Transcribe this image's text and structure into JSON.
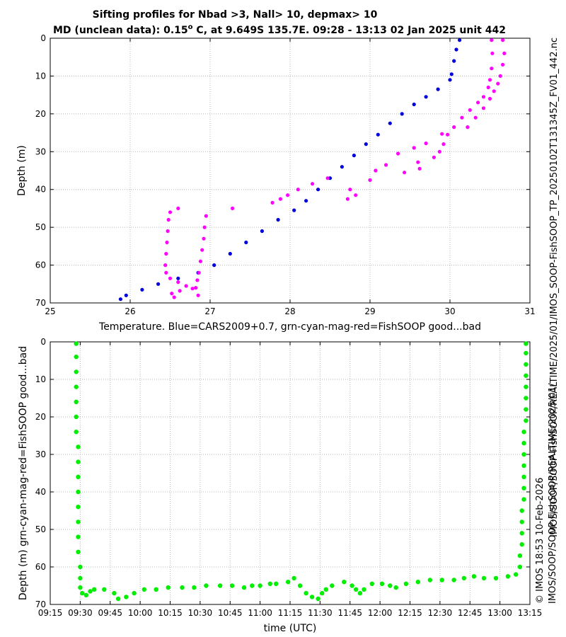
{
  "figure": {
    "title_line1": "Sifting profiles for Nbad >3, Nall> 10, depmax> 10",
    "title_line2": "MD (unclean data): 0.15",
    "title_degree": "o",
    "title_line2_rest": " C, at 9.649S 135.7E. 09:28 - 13:13 02 Jan 2025 unit 442",
    "side_file": "IMOS_SOOP-FishSOOP_TP_20250102T131345Z_FV01_442.nc",
    "side_path": "IMOS/SOOP/SOOP-FishSOOP/REALTIME/2025/01/",
    "side_stamp": "© IMOS 18:53 10-Feb-2026",
    "side_stamp_path": "IMOS/SOOP/SOOP-FishSOOP/REALTIME/2025/01/"
  },
  "colors": {
    "cars": "#0000dd",
    "magenta": "#ff00ff",
    "green": "#00ee00",
    "grid": "#b8b8b8"
  },
  "chart_data": [
    {
      "type": "scatter",
      "xlabel": "Temperature. Blue=CARS2009+0.7, grn-cyan-mag-red=FishSOOP good...bad",
      "ylabel": "Depth (m)",
      "xlim": [
        25,
        31
      ],
      "ylim": [
        0,
        70
      ],
      "y_reversed": true,
      "xticks": [
        25,
        26,
        27,
        28,
        29,
        30,
        31
      ],
      "yticks": [
        0,
        10,
        20,
        30,
        40,
        50,
        60,
        70
      ],
      "grid": true,
      "series": [
        {
          "color_key": "cars",
          "points": [
            [
              30.12,
              0.5
            ],
            [
              30.08,
              3
            ],
            [
              30.05,
              6
            ],
            [
              30.02,
              9.5
            ],
            [
              30.0,
              11
            ],
            [
              29.85,
              13.5
            ],
            [
              29.7,
              15.5
            ],
            [
              29.55,
              17.5
            ],
            [
              29.4,
              20
            ],
            [
              29.25,
              22.5
            ],
            [
              29.1,
              25.5
            ],
            [
              28.95,
              28
            ],
            [
              28.8,
              31
            ],
            [
              28.65,
              34
            ],
            [
              28.5,
              37
            ],
            [
              28.35,
              40
            ],
            [
              28.2,
              43
            ],
            [
              28.05,
              45.5
            ],
            [
              27.85,
              48
            ],
            [
              27.65,
              51
            ],
            [
              27.45,
              54
            ],
            [
              27.25,
              57
            ],
            [
              27.05,
              60
            ],
            [
              26.85,
              62
            ],
            [
              26.6,
              63.5
            ],
            [
              26.35,
              65
            ],
            [
              26.15,
              66.5
            ],
            [
              25.95,
              68
            ],
            [
              25.88,
              69
            ]
          ]
        },
        {
          "color_key": "magenta",
          "points": [
            [
              30.52,
              0.5
            ],
            [
              30.53,
              4
            ],
            [
              30.52,
              8
            ],
            [
              30.5,
              11
            ],
            [
              30.48,
              13
            ],
            [
              30.42,
              15.5
            ],
            [
              30.35,
              17
            ],
            [
              30.25,
              19
            ],
            [
              30.15,
              21
            ],
            [
              30.05,
              23.5
            ],
            [
              29.97,
              25.5
            ],
            [
              29.92,
              28
            ],
            [
              29.87,
              30
            ],
            [
              30.66,
              0.5
            ],
            [
              30.68,
              4
            ],
            [
              30.66,
              7
            ],
            [
              30.63,
              10
            ],
            [
              30.6,
              12
            ],
            [
              30.55,
              14
            ],
            [
              30.5,
              16
            ],
            [
              30.42,
              18.5
            ],
            [
              30.32,
              21
            ],
            [
              30.22,
              23.5
            ],
            [
              29.9,
              25.3
            ],
            [
              29.7,
              27.8
            ],
            [
              29.55,
              29
            ],
            [
              29.35,
              30.5
            ],
            [
              29.8,
              31.5
            ],
            [
              29.6,
              32.8
            ],
            [
              29.2,
              33.5
            ],
            [
              29.07,
              35
            ],
            [
              29.43,
              35.5
            ],
            [
              29.62,
              34.5
            ],
            [
              29.0,
              37.5
            ],
            [
              28.75,
              40
            ],
            [
              28.72,
              42.5
            ],
            [
              28.82,
              41.5
            ],
            [
              28.47,
              37
            ],
            [
              28.28,
              38.5
            ],
            [
              28.1,
              40
            ],
            [
              27.97,
              41.5
            ],
            [
              27.88,
              42.5
            ],
            [
              27.78,
              43.5
            ],
            [
              27.28,
              45
            ],
            [
              26.95,
              47
            ],
            [
              26.93,
              50
            ],
            [
              26.92,
              53
            ],
            [
              26.9,
              56
            ],
            [
              26.88,
              59
            ],
            [
              26.86,
              62
            ],
            [
              26.84,
              64
            ],
            [
              26.82,
              66
            ],
            [
              26.85,
              68
            ],
            [
              26.6,
              45
            ],
            [
              26.5,
              46
            ],
            [
              26.48,
              48
            ],
            [
              26.47,
              51
            ],
            [
              26.46,
              54
            ],
            [
              26.45,
              57
            ],
            [
              26.44,
              60
            ],
            [
              26.45,
              62
            ],
            [
              26.5,
              63.5
            ],
            [
              26.6,
              64.5
            ],
            [
              26.7,
              65.5
            ],
            [
              26.78,
              66.2
            ],
            [
              26.62,
              66.8
            ],
            [
              26.52,
              67.5
            ],
            [
              26.55,
              68.5
            ]
          ]
        }
      ]
    },
    {
      "type": "scatter",
      "xlabel": "time (UTC)",
      "ylabel": "Depth (m) grn-cyan-mag-red=FishSOOP good...bad",
      "xlim": [
        "09:15",
        "13:15"
      ],
      "ylim": [
        0,
        70
      ],
      "y_reversed": true,
      "xticks": [
        "09:15",
        "09:30",
        "09:45",
        "10:00",
        "10:15",
        "10:30",
        "10:45",
        "11:00",
        "11:15",
        "11:30",
        "11:45",
        "12:00",
        "12:15",
        "12:30",
        "12:45",
        "13:00",
        "13:15"
      ],
      "yticks": [
        0,
        10,
        20,
        30,
        40,
        50,
        60,
        70
      ],
      "grid": true,
      "series": [
        {
          "color_key": "green",
          "points": [
            [
              "09:28",
              0.5
            ],
            [
              "09:28",
              4
            ],
            [
              "09:28",
              8
            ],
            [
              "09:28",
              12
            ],
            [
              "09:28",
              16
            ],
            [
              "09:28",
              20
            ],
            [
              "09:28",
              24
            ],
            [
              "09:29",
              28
            ],
            [
              "09:29",
              32
            ],
            [
              "09:29",
              36
            ],
            [
              "09:29",
              40
            ],
            [
              "09:29",
              44
            ],
            [
              "09:29",
              48
            ],
            [
              "09:29",
              52
            ],
            [
              "09:29",
              56
            ],
            [
              "09:30",
              60
            ],
            [
              "09:30",
              63
            ],
            [
              "09:30",
              65.5
            ],
            [
              "09:31",
              67
            ],
            [
              "09:33",
              67.5
            ],
            [
              "09:35",
              66.5
            ],
            [
              "09:37",
              66
            ],
            [
              "09:42",
              66
            ],
            [
              "09:47",
              67
            ],
            [
              "09:49",
              68.5
            ],
            [
              "09:53",
              68
            ],
            [
              "09:57",
              67
            ],
            [
              "10:02",
              66
            ],
            [
              "10:08",
              66
            ],
            [
              "10:14",
              65.5
            ],
            [
              "10:21",
              65.5
            ],
            [
              "10:27",
              65.5
            ],
            [
              "10:33",
              65
            ],
            [
              "10:40",
              65
            ],
            [
              "10:46",
              65
            ],
            [
              "10:52",
              65.5
            ],
            [
              "10:56",
              65
            ],
            [
              "11:00",
              65
            ],
            [
              "11:05",
              64.5
            ],
            [
              "11:08",
              64.5
            ],
            [
              "11:14",
              64
            ],
            [
              "11:17",
              63
            ],
            [
              "11:20",
              65
            ],
            [
              "11:23",
              67
            ],
            [
              "11:26",
              68
            ],
            [
              "11:29",
              68.5
            ],
            [
              "11:31",
              67
            ],
            [
              "11:33",
              66
            ],
            [
              "11:36",
              65
            ],
            [
              "11:42",
              64
            ],
            [
              "11:46",
              65
            ],
            [
              "11:48",
              66
            ],
            [
              "11:50",
              67
            ],
            [
              "11:52",
              66
            ],
            [
              "11:56",
              64.5
            ],
            [
              "12:01",
              64.5
            ],
            [
              "12:05",
              65
            ],
            [
              "12:08",
              65.5
            ],
            [
              "12:13",
              64.5
            ],
            [
              "12:19",
              64
            ],
            [
              "12:25",
              63.5
            ],
            [
              "12:31",
              63.5
            ],
            [
              "12:37",
              63.5
            ],
            [
              "12:42",
              63
            ],
            [
              "12:47",
              62.5
            ],
            [
              "12:52",
              63
            ],
            [
              "12:58",
              63
            ],
            [
              "13:04",
              62.5
            ],
            [
              "13:08",
              62
            ],
            [
              "13:10",
              60
            ],
            [
              "13:10",
              57
            ],
            [
              "13:11",
              54
            ],
            [
              "13:11",
              51
            ],
            [
              "13:11",
              48
            ],
            [
              "13:11",
              45
            ],
            [
              "13:12",
              42
            ],
            [
              "13:12",
              39
            ],
            [
              "13:12",
              36
            ],
            [
              "13:12",
              33
            ],
            [
              "13:12",
              30
            ],
            [
              "13:12",
              27
            ],
            [
              "13:12",
              24
            ],
            [
              "13:13",
              21
            ],
            [
              "13:13",
              18
            ],
            [
              "13:13",
              15
            ],
            [
              "13:13",
              12
            ],
            [
              "13:13",
              9
            ],
            [
              "13:13",
              6
            ],
            [
              "13:13",
              3
            ],
            [
              "13:13",
              0.5
            ]
          ]
        }
      ]
    }
  ]
}
